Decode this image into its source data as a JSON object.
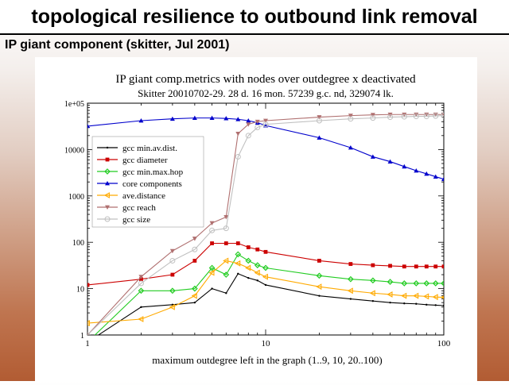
{
  "slide": {
    "title": "topological resilience to outbound link removal",
    "subtitle": "IP giant component (skitter, Jul 2001)"
  },
  "chart_data": {
    "type": "line",
    "title": "IP giant comp.metrics with nodes over outdegree x deactivated",
    "subtitle": "Skitter 20010702-29. 28 d. 16 mon. 57239 g.c. nd, 329074 lk.",
    "xlabel": "maximum outdegree left in the graph (1..9, 10, 20..100)",
    "ylabel": "",
    "x_scale": "log",
    "y_scale": "log",
    "xlim": [
      1,
      100
    ],
    "ylim": [
      1,
      100000
    ],
    "x_ticks": [
      {
        "value": 1,
        "label": "1"
      },
      {
        "value": 10,
        "label": "10"
      },
      {
        "value": 100,
        "label": "100"
      }
    ],
    "y_ticks": [
      {
        "value": 1,
        "label": "1"
      },
      {
        "value": 10,
        "label": "10"
      },
      {
        "value": 100,
        "label": "100"
      },
      {
        "value": 1000,
        "label": "1000"
      },
      {
        "value": 10000,
        "label": "10000"
      },
      {
        "value": 100000,
        "label": "1e+05"
      }
    ],
    "grid": false,
    "legend_position": "top-left",
    "x": [
      1,
      2,
      3,
      4,
      5,
      6,
      7,
      8,
      9,
      10,
      20,
      30,
      40,
      50,
      60,
      70,
      80,
      90,
      100
    ],
    "series": [
      {
        "name": "gcc min.av.dist.",
        "color": "#000000",
        "marker": "dot",
        "values": [
          0.7,
          4,
          4.5,
          5,
          10,
          8,
          21,
          17,
          15,
          12,
          7,
          6,
          5.4,
          5,
          4.8,
          4.7,
          4.5,
          4.4,
          4.3
        ]
      },
      {
        "name": "gcc diameter",
        "color": "#cc0000",
        "marker": "square",
        "values": [
          12,
          16,
          20,
          40,
          95,
          95,
          95,
          78,
          70,
          62,
          40,
          34,
          32,
          31,
          30,
          30,
          30,
          30,
          30
        ]
      },
      {
        "name": "gcc min.max.hop",
        "color": "#22cc22",
        "marker": "diamond",
        "values": [
          0.7,
          9,
          9,
          10,
          28,
          20,
          55,
          40,
          32,
          28,
          19,
          16,
          15,
          14,
          13,
          13,
          13,
          13,
          13
        ]
      },
      {
        "name": "core components",
        "color": "#0000cc",
        "marker": "triangle-up",
        "values": [
          32000,
          42000,
          46000,
          48000,
          48000,
          47000,
          45000,
          42000,
          38000,
          33000,
          18000,
          11000,
          7000,
          5500,
          4300,
          3500,
          3000,
          2600,
          2300
        ]
      },
      {
        "name": "ave.distance",
        "color": "#ffaa00",
        "marker": "triangle-left",
        "values": [
          1.8,
          2.2,
          4,
          7,
          22,
          40,
          35,
          28,
          22,
          18,
          11,
          9,
          8,
          7.5,
          7,
          7,
          6.8,
          6.6,
          6.5
        ]
      },
      {
        "name": "gcc reach",
        "color": "#b07070",
        "marker": "triangle-down",
        "values": [
          1,
          18,
          65,
          120,
          260,
          350,
          22000,
          35000,
          40000,
          42000,
          50000,
          54000,
          56000,
          57000,
          57000,
          57000,
          57000,
          57000,
          57000
        ]
      },
      {
        "name": "gcc size",
        "color": "#c0c0c0",
        "marker": "circle",
        "values": [
          1,
          13,
          40,
          70,
          180,
          200,
          7000,
          20000,
          30000,
          35000,
          42000,
          46000,
          48000,
          50000,
          51000,
          52000,
          52000,
          53000,
          54000
        ]
      }
    ]
  }
}
